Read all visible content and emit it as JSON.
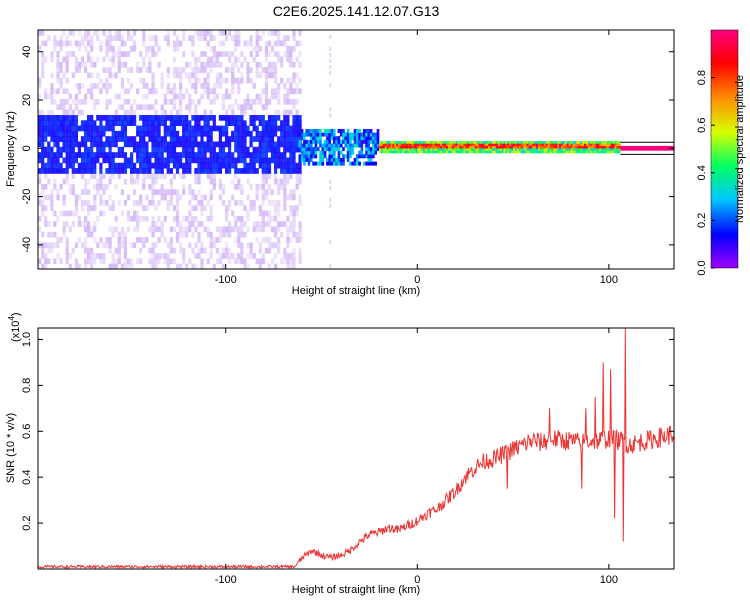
{
  "title": "C2E6.2025.141.12.07.G13",
  "chart_data": [
    {
      "type": "heatmap",
      "xlabel": "Height of straight line (km)",
      "ylabel": "Frequency (Hz)",
      "xlim": [
        -198,
        134
      ],
      "ylim": [
        -50,
        49
      ],
      "xticks": [
        -100,
        0,
        100
      ],
      "xtick_labels": [
        "-100",
        "0",
        "100"
      ],
      "yticks": [
        -40,
        -20,
        0,
        20,
        40
      ],
      "ytick_labels": [
        "-40",
        "-20",
        "0",
        "20",
        "40"
      ],
      "colorbar": {
        "label": "Normalized spectral amplitude",
        "range": [
          0,
          1
        ],
        "ticks": [
          0.0,
          0.2,
          0.4,
          0.6,
          0.8
        ],
        "tick_labels": [
          "0.0",
          "0.2",
          "0.4",
          "0.6",
          "0.8"
        ],
        "colormap": [
          "#a000ff",
          "#0000ff",
          "#00c8ff",
          "#00ff60",
          "#d8ff00",
          "#ff9000",
          "#ff0000",
          "#ff0080"
        ]
      },
      "regions": [
        {
          "x_range": [
            -198,
            -62
          ],
          "noise_amplitude": 0.05,
          "core_band_hz": [
            -10,
            10
          ],
          "core_amplitude": 0.12
        },
        {
          "x_range": [
            -62,
            -20
          ],
          "band_hz": [
            -7,
            7
          ],
          "amplitude": 0.3
        },
        {
          "x_range": [
            -20,
            106
          ],
          "band_hz": [
            -2,
            3
          ],
          "amplitude": 0.95
        },
        {
          "x_range": [
            106,
            134
          ],
          "band_hz": [
            -1,
            1
          ],
          "amplitude": 1.0
        }
      ],
      "grid": false
    },
    {
      "type": "line",
      "xlabel": "Height of straight line (km)",
      "ylabel": "SNR (10 * v/v)",
      "y_multiplier_label": "(x10",
      "y_multiplier_exponent": "4",
      "y_multiplier_close": ")",
      "xlim": [
        -198,
        134
      ],
      "ylim": [
        0,
        1.05
      ],
      "xticks": [
        -100,
        0,
        100
      ],
      "xtick_labels": [
        "-100",
        "0",
        "100"
      ],
      "yticks": [
        0.2,
        0.4,
        0.6,
        0.8,
        1.0
      ],
      "ytick_labels": [
        "0.2",
        "0.4",
        "0.6",
        "0.8",
        "1.0"
      ],
      "series": [
        {
          "color": "#ee3333",
          "x": [
            -198,
            -160,
            -120,
            -80,
            -64,
            -60,
            -55,
            -50,
            -45,
            -40,
            -35,
            -30,
            -25,
            -20,
            -15,
            -10,
            -5,
            0,
            5,
            10,
            15,
            20,
            25,
            30,
            35,
            40,
            45,
            50,
            55,
            60,
            65,
            70,
            75,
            80,
            85,
            90,
            95,
            100,
            105,
            108,
            110,
            115,
            120,
            125,
            130,
            134
          ],
          "y": [
            0.01,
            0.01,
            0.01,
            0.01,
            0.01,
            0.05,
            0.08,
            0.06,
            0.05,
            0.06,
            0.08,
            0.12,
            0.15,
            0.16,
            0.18,
            0.17,
            0.19,
            0.21,
            0.24,
            0.26,
            0.3,
            0.34,
            0.4,
            0.44,
            0.47,
            0.48,
            0.5,
            0.52,
            0.54,
            0.56,
            0.55,
            0.57,
            0.56,
            0.56,
            0.55,
            0.56,
            0.56,
            0.57,
            0.56,
            0.56,
            0.54,
            0.55,
            0.56,
            0.57,
            0.58,
            0.59
          ],
          "spikes": [
            {
              "x": 108.5,
              "y": 1.05
            },
            {
              "x": 107.5,
              "y": 0.12
            },
            {
              "x": 101,
              "y": 0.87
            },
            {
              "x": 97,
              "y": 0.9
            },
            {
              "x": 103,
              "y": 0.22
            },
            {
              "x": 93,
              "y": 0.75
            },
            {
              "x": 88,
              "y": 0.7
            },
            {
              "x": 86,
              "y": 0.35
            },
            {
              "x": 69,
              "y": 0.7
            },
            {
              "x": 47,
              "y": 0.35
            }
          ]
        }
      ],
      "grid": false
    }
  ]
}
